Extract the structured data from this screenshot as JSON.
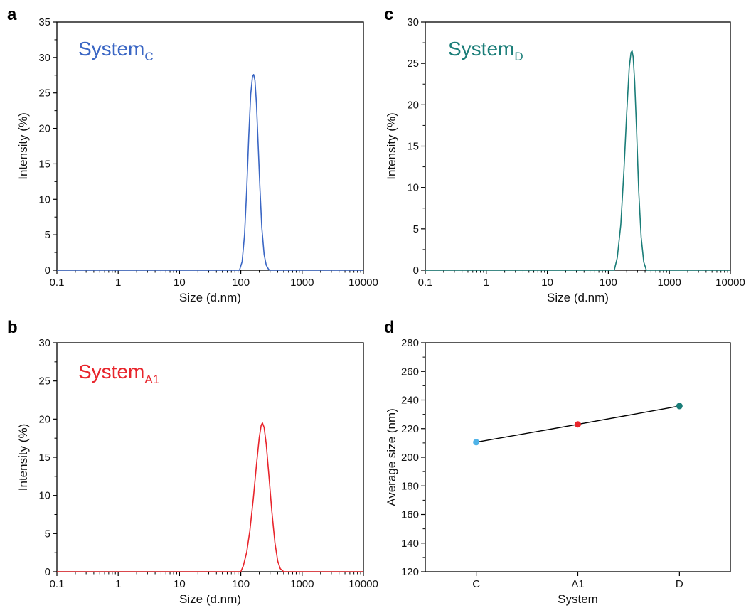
{
  "chart_data": [
    {
      "panel": "a",
      "type": "line",
      "xlabel": "Size (d.nm)",
      "ylabel": "Intensity (%)",
      "xscale": "log",
      "xlim": [
        0.1,
        10000
      ],
      "ylim": [
        0,
        35
      ],
      "xticks": [
        0.1,
        1,
        10,
        100,
        1000,
        10000
      ],
      "xtick_labels": [
        "0.1",
        "1",
        "10",
        "100",
        "1000",
        "10000"
      ],
      "yticks": [
        0,
        5,
        10,
        15,
        20,
        25,
        30,
        35
      ],
      "ytick_labels": [
        "0",
        "5",
        "10",
        "15",
        "20",
        "25",
        "30",
        "35"
      ],
      "grid": false,
      "legend": "none",
      "annotation": {
        "text": "System",
        "subscript": "C",
        "color": "#3a66c4"
      },
      "series": [
        {
          "color": "#3a66c4",
          "x": [
            0.1,
            95,
            105,
            115,
            125,
            135,
            145,
            155,
            162,
            170,
            180,
            190,
            205,
            220,
            240,
            260,
            285,
            300,
            10000
          ],
          "y": [
            0,
            0,
            1.2,
            5.0,
            11.5,
            19.0,
            24.8,
            27.3,
            27.6,
            26.8,
            23.5,
            18.6,
            11.6,
            6.0,
            2.2,
            0.7,
            0.1,
            0,
            0
          ]
        }
      ]
    },
    {
      "panel": "b",
      "type": "line",
      "xlabel": "Size (d.nm)",
      "ylabel": "Intensity (%)",
      "xscale": "log",
      "xlim": [
        0.1,
        10000
      ],
      "ylim": [
        0,
        30
      ],
      "xticks": [
        0.1,
        1,
        10,
        100,
        1000,
        10000
      ],
      "xtick_labels": [
        "0.1",
        "1",
        "10",
        "100",
        "1000",
        "10000"
      ],
      "yticks": [
        0,
        5,
        10,
        15,
        20,
        25,
        30
      ],
      "ytick_labels": [
        "0",
        "5",
        "10",
        "15",
        "20",
        "25",
        "30"
      ],
      "grid": false,
      "legend": "none",
      "annotation": {
        "text": "System",
        "subscript": "A1",
        "color": "#e8242b"
      },
      "series": [
        {
          "color": "#e8242b",
          "x": [
            0.1,
            100,
            110,
            125,
            140,
            160,
            180,
            200,
            215,
            225,
            240,
            260,
            290,
            320,
            360,
            400,
            440,
            500,
            10000
          ],
          "y": [
            0,
            0,
            0.8,
            2.6,
            5.3,
            9.6,
            14.0,
            17.6,
            19.2,
            19.5,
            18.9,
            16.7,
            12.2,
            8.0,
            3.8,
            1.4,
            0.4,
            0,
            0
          ]
        }
      ]
    },
    {
      "panel": "c",
      "type": "line",
      "xlabel": "Size (d.nm)",
      "ylabel": "Intensity (%)",
      "xscale": "log",
      "xlim": [
        0.1,
        10000
      ],
      "ylim": [
        0,
        30
      ],
      "xticks": [
        0.1,
        1,
        10,
        100,
        1000,
        10000
      ],
      "xtick_labels": [
        "0.1",
        "1",
        "10",
        "100",
        "1000",
        "10000"
      ],
      "yticks": [
        0,
        5,
        10,
        15,
        20,
        25,
        30
      ],
      "ytick_labels": [
        "0",
        "5",
        "10",
        "15",
        "20",
        "25",
        "30"
      ],
      "grid": false,
      "legend": "none",
      "annotation": {
        "text": "System",
        "subscript": "D",
        "color": "#1a7d78"
      },
      "series": [
        {
          "color": "#1a7d78",
          "x": [
            0.1,
            125,
            140,
            160,
            180,
            200,
            220,
            235,
            245,
            255,
            270,
            290,
            315,
            345,
            380,
            420,
            10000
          ],
          "y": [
            0,
            0,
            1.5,
            5.5,
            12.0,
            19.0,
            24.5,
            26.3,
            26.5,
            25.8,
            22.8,
            17.0,
            9.5,
            4.0,
            1.0,
            0,
            0
          ]
        }
      ]
    },
    {
      "panel": "d",
      "type": "line",
      "xlabel": "System",
      "ylabel": "Average size (nm)",
      "categories": [
        "C",
        "A1",
        "D"
      ],
      "ylim": [
        120,
        280
      ],
      "yticks": [
        120,
        140,
        160,
        180,
        200,
        220,
        240,
        260,
        280
      ],
      "ytick_labels": [
        "120",
        "140",
        "160",
        "180",
        "200",
        "220",
        "240",
        "260",
        "280"
      ],
      "grid": false,
      "legend": "none",
      "line_color": "#000000",
      "series": [
        {
          "values": [
            210.5,
            223.0,
            235.8
          ],
          "point_colors": [
            "#4fb3e8",
            "#e8242b",
            "#1a7d78"
          ]
        }
      ]
    }
  ],
  "panel_letters": [
    "a",
    "b",
    "c",
    "d"
  ]
}
